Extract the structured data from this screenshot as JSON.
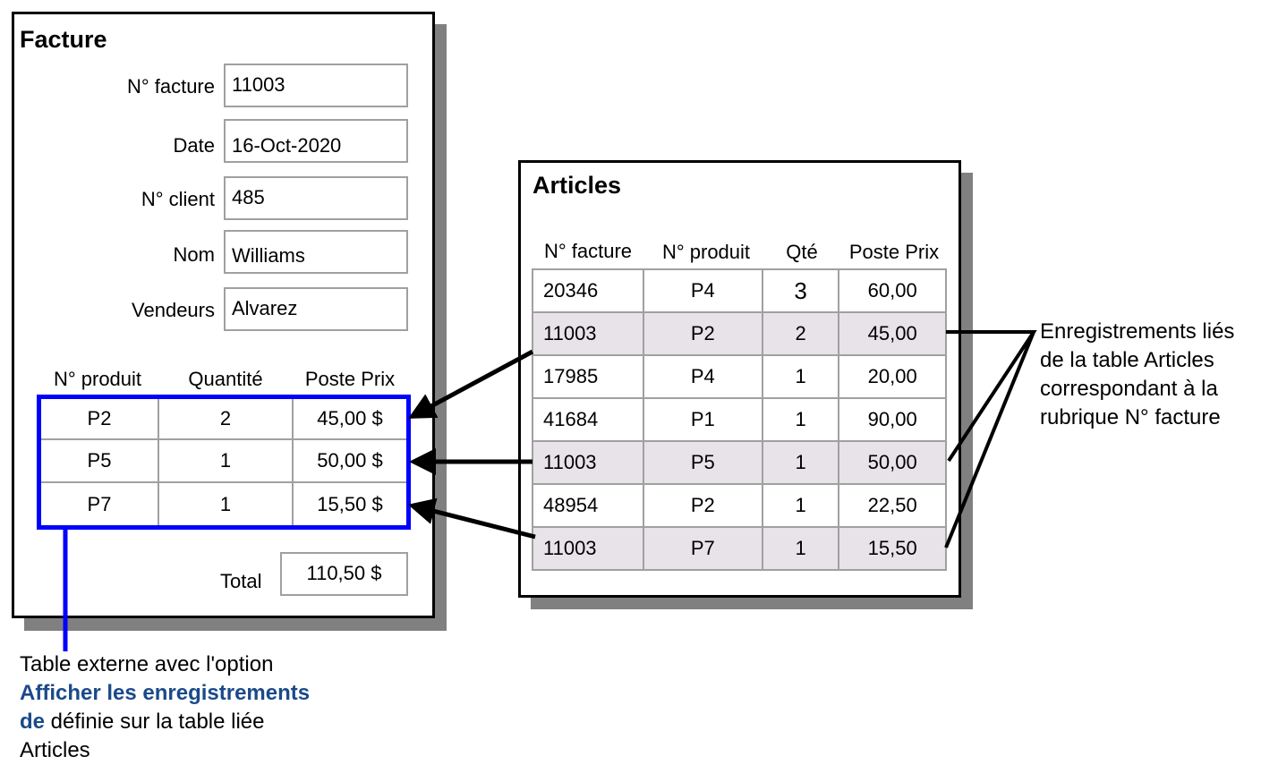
{
  "facture": {
    "title": "Facture",
    "fields": [
      {
        "label": "N° facture",
        "value": "11003"
      },
      {
        "label": "Date",
        "value": "16-Oct-2020"
      },
      {
        "label": "N° client",
        "value": "485"
      },
      {
        "label": "Nom",
        "value": "Williams"
      },
      {
        "label": "Vendeurs",
        "value": "Alvarez"
      }
    ],
    "columns": [
      "N° produit",
      "Quantité",
      "Poste Prix"
    ],
    "rows": [
      [
        "P2",
        "2",
        "45,00 $"
      ],
      [
        "P5",
        "1",
        "50,00 $"
      ],
      [
        "P7",
        "1",
        "15,50 $"
      ]
    ],
    "total_label": "Total",
    "total_value": "110,50 $"
  },
  "articles": {
    "title": "Articles",
    "columns": [
      "N° facture",
      "N° produit",
      "Qté",
      "Poste Prix"
    ],
    "rows": [
      [
        "20346",
        "P4",
        "3",
        "60,00"
      ],
      [
        "11003",
        "P2",
        "2",
        "45,00"
      ],
      [
        "17985",
        "P4",
        "1",
        "20,00"
      ],
      [
        "41684",
        "P1",
        "1",
        "90,00"
      ],
      [
        "11003",
        "P5",
        "1",
        "50,00"
      ],
      [
        "48954",
        "P2",
        "1",
        "22,50"
      ],
      [
        "11003",
        "P7",
        "1",
        "15,50"
      ]
    ]
  },
  "annotation_right": [
    "Enregistrements liés",
    "de la table Articles",
    "correspondant à la",
    "rubrique N° facture"
  ],
  "caption": {
    "line1": "Table externe avec l'option",
    "bold1": "Afficher les enregistrements",
    "bold2": "de",
    "line3_rest": " définie sur la table liée",
    "line4": "Articles"
  },
  "colors": {
    "highlight_box": "#0000ff",
    "highlight_row": "#e7e3e8",
    "shadow": "#808080",
    "caption_bold": "#1a4a8a"
  }
}
